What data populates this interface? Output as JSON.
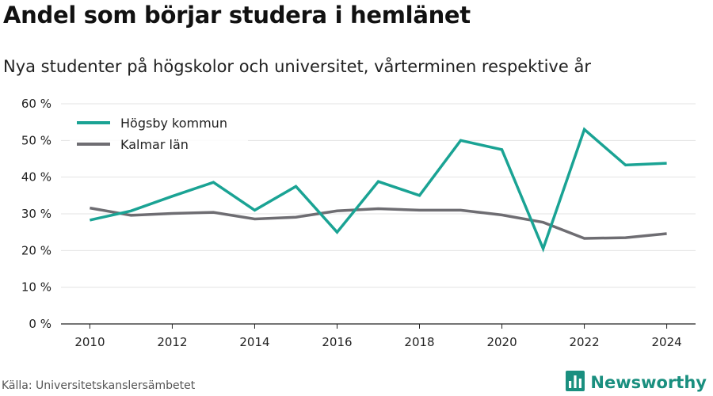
{
  "title": "Andel som börjar studera i hemlänet",
  "subtitle": "Nya studenter på högskolor och universitet, vårterminen respektive år",
  "source": "Källa: Universitetskanslersämbetet",
  "brand": {
    "name": "Newsworthy",
    "icon": "bar-chart-logo-icon",
    "color": "#1a8f7f"
  },
  "chart_data": {
    "type": "line",
    "x": [
      2010,
      2011,
      2012,
      2013,
      2014,
      2015,
      2016,
      2017,
      2018,
      2019,
      2020,
      2021,
      2022,
      2023,
      2024
    ],
    "x_ticks": [
      2010,
      2012,
      2014,
      2016,
      2018,
      2020,
      2022,
      2024
    ],
    "y_ticks": [
      0,
      10,
      20,
      30,
      40,
      50,
      60
    ],
    "y_tick_labels": [
      "0 %",
      "10 %",
      "20 %",
      "30 %",
      "40 %",
      "50 %",
      "60 %"
    ],
    "ylim": [
      0,
      60
    ],
    "xlim": [
      2009.3,
      2024.7
    ],
    "grid": "horizontal",
    "legend_position": "top-left",
    "series": [
      {
        "name": "Högsby kommun",
        "color": "#1aa394",
        "values": [
          28.3,
          30.8,
          34.8,
          38.6,
          31.0,
          37.5,
          25.0,
          38.8,
          35.0,
          50.0,
          47.5,
          20.5,
          53.0,
          43.3,
          43.8
        ]
      },
      {
        "name": "Kalmar län",
        "color": "#6e6d72",
        "values": [
          31.6,
          29.6,
          30.1,
          30.4,
          28.6,
          29.1,
          30.8,
          31.4,
          31.0,
          31.0,
          29.7,
          27.7,
          23.3,
          23.5,
          24.6
        ]
      }
    ]
  }
}
